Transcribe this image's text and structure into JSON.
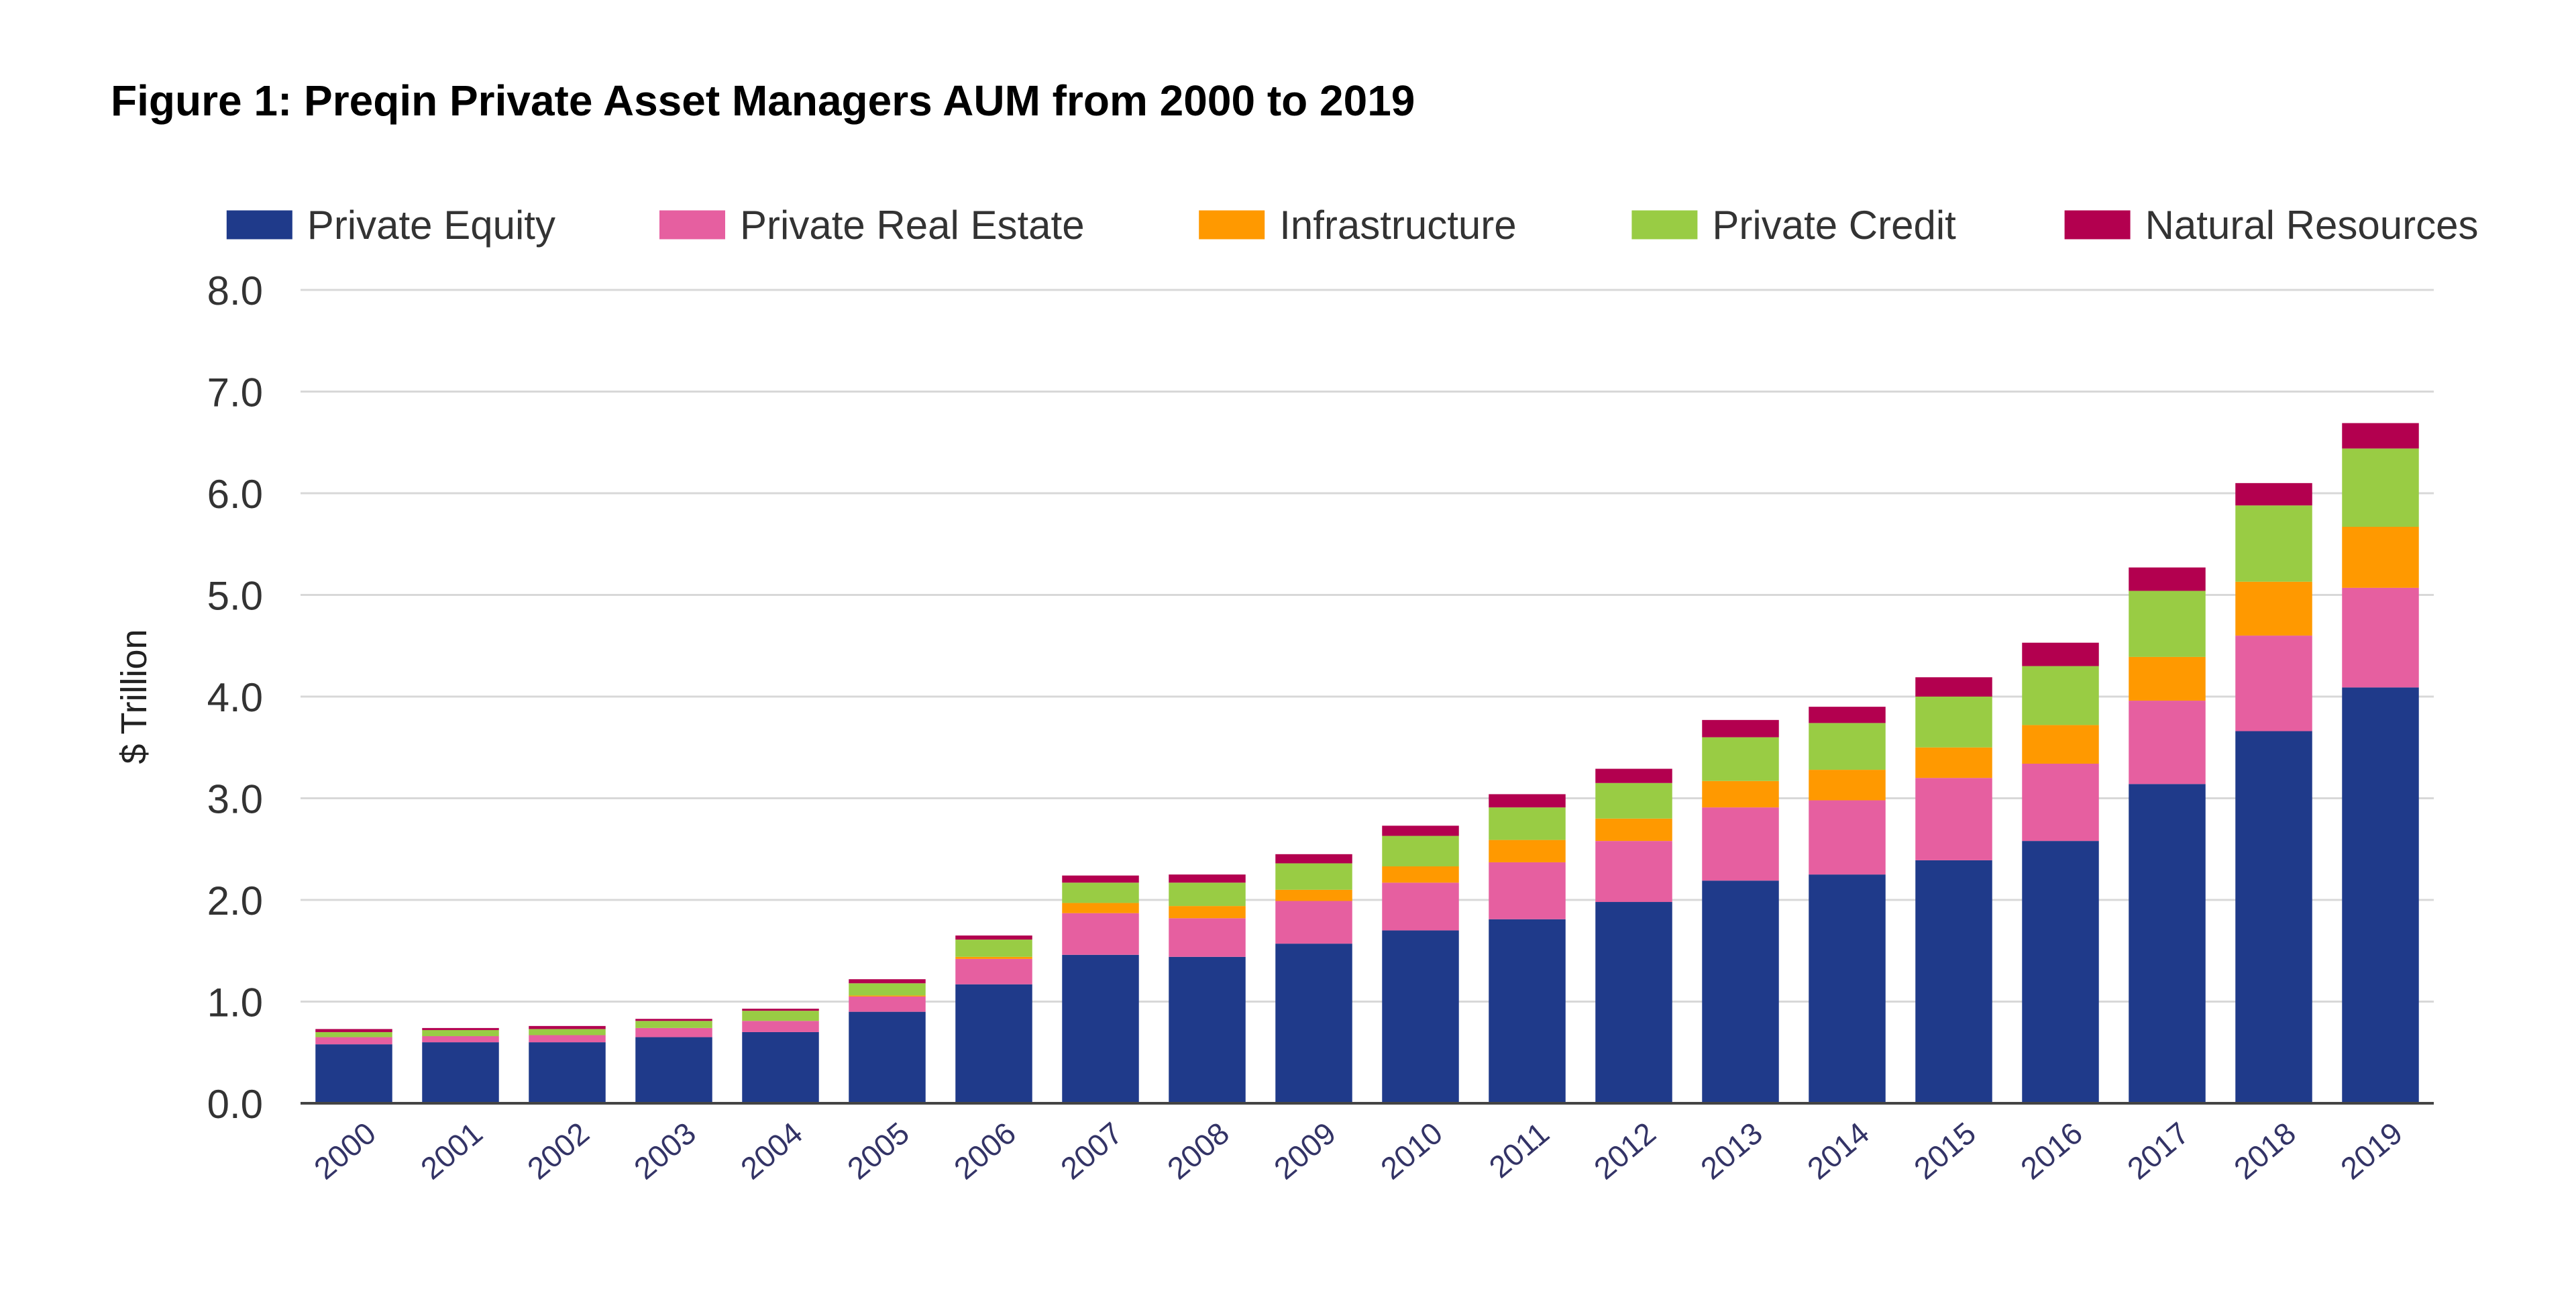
{
  "chart_data": {
    "type": "bar",
    "stacked": true,
    "title": "Figure 1: Preqin Private Asset Managers AUM from 2000 to 2019",
    "xlabel": "",
    "ylabel": "$ Trillion",
    "ylim": [
      0,
      8
    ],
    "yticks": [
      "0.0",
      "1.0",
      "2.0",
      "3.0",
      "4.0",
      "5.0",
      "6.0",
      "7.0",
      "8.0"
    ],
    "grid": true,
    "legend_position": "top",
    "categories": [
      "2000",
      "2001",
      "2002",
      "2003",
      "2004",
      "2005",
      "2006",
      "2007",
      "2008",
      "2009",
      "2010",
      "2011",
      "2012",
      "2013",
      "2014",
      "2015",
      "2016",
      "2017",
      "2018",
      "2019"
    ],
    "series": [
      {
        "name": "Private Equity",
        "color": "#1f3a8a",
        "values": [
          0.58,
          0.6,
          0.6,
          0.65,
          0.7,
          0.9,
          1.17,
          1.46,
          1.44,
          1.57,
          1.7,
          1.81,
          1.98,
          2.19,
          2.25,
          2.39,
          2.58,
          3.14,
          3.66,
          4.09
        ]
      },
      {
        "name": "Private Real Estate",
        "color": "#e65fa0",
        "values": [
          0.07,
          0.06,
          0.07,
          0.09,
          0.11,
          0.15,
          0.25,
          0.41,
          0.38,
          0.42,
          0.47,
          0.56,
          0.6,
          0.72,
          0.73,
          0.81,
          0.76,
          0.82,
          0.94,
          0.98
        ]
      },
      {
        "name": "Infrastructure",
        "color": "#ff9900",
        "values": [
          0.0,
          0.0,
          0.0,
          0.0,
          0.0,
          0.01,
          0.02,
          0.1,
          0.12,
          0.11,
          0.16,
          0.22,
          0.22,
          0.26,
          0.3,
          0.3,
          0.38,
          0.43,
          0.53,
          0.6
        ]
      },
      {
        "name": "Private Credit",
        "color": "#99cc44",
        "values": [
          0.05,
          0.06,
          0.06,
          0.07,
          0.1,
          0.12,
          0.17,
          0.2,
          0.23,
          0.26,
          0.3,
          0.32,
          0.35,
          0.43,
          0.46,
          0.5,
          0.58,
          0.65,
          0.75,
          0.77
        ]
      },
      {
        "name": "Natural Resources",
        "color": "#b3004f",
        "values": [
          0.03,
          0.02,
          0.03,
          0.02,
          0.02,
          0.04,
          0.04,
          0.07,
          0.08,
          0.09,
          0.1,
          0.13,
          0.14,
          0.17,
          0.16,
          0.19,
          0.23,
          0.23,
          0.22,
          0.25
        ]
      }
    ]
  }
}
